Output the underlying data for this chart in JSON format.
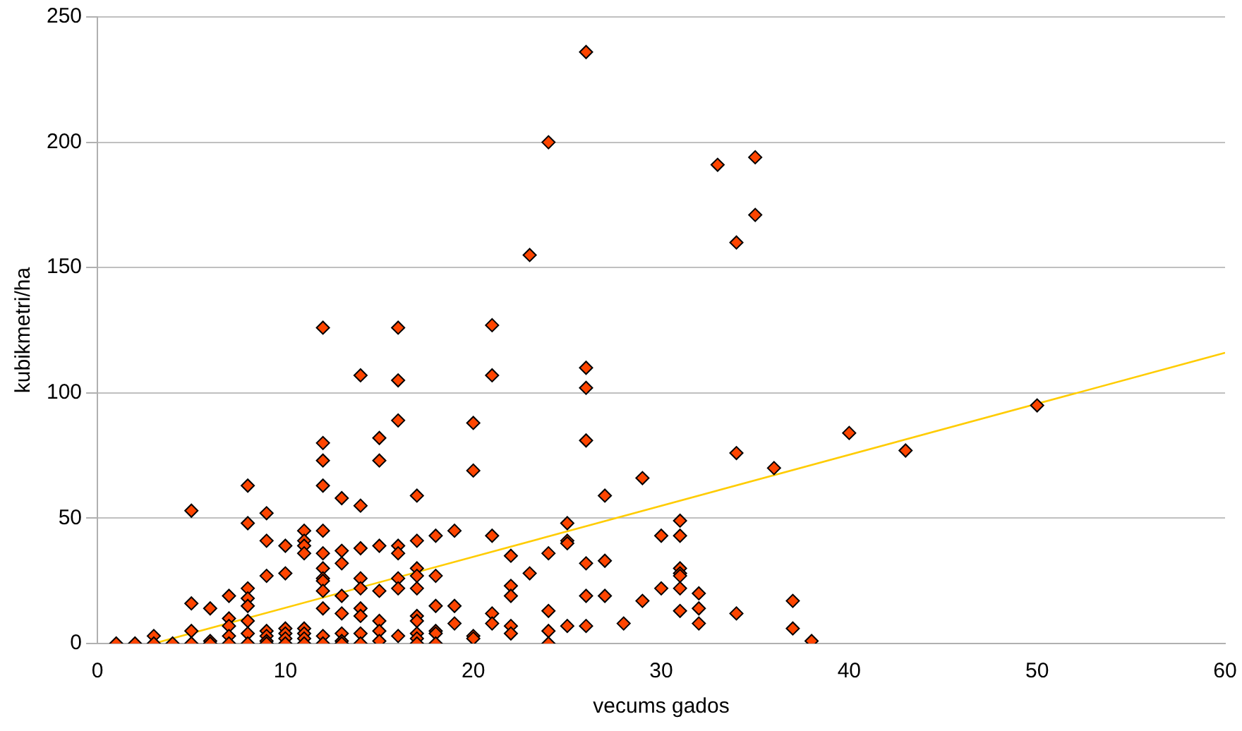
{
  "chart_data": {
    "type": "scatter",
    "xlabel": "vecums gados",
    "ylabel": "kubikmetri/ha",
    "xlim": [
      0,
      60
    ],
    "xticks": [
      0,
      10,
      20,
      30,
      40,
      50,
      60
    ],
    "ylim": [
      0,
      250
    ],
    "yticks": [
      0,
      50,
      100,
      150,
      200,
      250
    ],
    "grid": "y",
    "marker": "diamond",
    "series": [
      {
        "color": "#ff4500",
        "x": [
          1,
          2,
          3,
          3,
          4,
          5,
          5,
          5,
          5,
          6,
          6,
          6,
          7,
          7,
          7,
          7,
          7,
          8,
          8,
          8,
          8,
          8,
          8,
          8,
          8,
          9,
          9,
          9,
          9,
          9,
          9,
          9,
          10,
          10,
          10,
          10,
          10,
          10,
          11,
          11,
          11,
          11,
          11,
          11,
          11,
          11,
          12,
          12,
          12,
          12,
          12,
          12,
          12,
          12,
          12,
          12,
          12,
          12,
          12,
          13,
          13,
          13,
          13,
          13,
          13,
          13,
          13,
          14,
          14,
          14,
          14,
          14,
          14,
          14,
          14,
          14,
          15,
          15,
          15,
          15,
          15,
          15,
          15,
          16,
          16,
          16,
          16,
          16,
          16,
          16,
          16,
          17,
          17,
          17,
          17,
          17,
          17,
          17,
          17,
          17,
          17,
          18,
          18,
          18,
          18,
          18,
          18,
          19,
          19,
          19,
          20,
          20,
          20,
          20,
          21,
          21,
          21,
          21,
          21,
          22,
          22,
          22,
          22,
          22,
          23,
          23,
          24,
          24,
          24,
          24,
          24,
          25,
          25,
          25,
          25,
          26,
          26,
          26,
          26,
          26,
          26,
          26,
          27,
          27,
          27,
          28,
          29,
          29,
          30,
          30,
          31,
          31,
          31,
          31,
          31,
          31,
          31,
          32,
          32,
          32,
          33,
          34,
          34,
          34,
          35,
          35,
          36,
          37,
          37,
          38,
          40,
          43,
          50
        ],
        "values": [
          0,
          0,
          3,
          0,
          0,
          53,
          16,
          5,
          0,
          14,
          1,
          0,
          19,
          10,
          7,
          3,
          0,
          63,
          48,
          22,
          18,
          15,
          9,
          4,
          0,
          52,
          41,
          27,
          5,
          3,
          1,
          0,
          39,
          28,
          6,
          4,
          2,
          0,
          45,
          41,
          39,
          36,
          6,
          4,
          2,
          0,
          126,
          80,
          73,
          63,
          45,
          36,
          30,
          26,
          25,
          21,
          14,
          3,
          0,
          58,
          37,
          32,
          19,
          12,
          4,
          1,
          0,
          107,
          55,
          38,
          26,
          22,
          14,
          11,
          4,
          0,
          82,
          73,
          39,
          21,
          9,
          5,
          1,
          126,
          105,
          89,
          39,
          36,
          26,
          22,
          3,
          59,
          41,
          30,
          27,
          22,
          11,
          9,
          4,
          2,
          0,
          43,
          27,
          15,
          5,
          4,
          0,
          45,
          15,
          8,
          88,
          69,
          3,
          2,
          127,
          107,
          43,
          12,
          8,
          35,
          23,
          19,
          7,
          4,
          155,
          28,
          200,
          36,
          13,
          5,
          0,
          48,
          41,
          40,
          7,
          236,
          110,
          102,
          81,
          32,
          19,
          7,
          59,
          33,
          19,
          8,
          66,
          17,
          43,
          22,
          49,
          43,
          30,
          28,
          27,
          22,
          13,
          20,
          14,
          8,
          191,
          160,
          76,
          12,
          194,
          171,
          70,
          17,
          6,
          1,
          84,
          77,
          95
        ]
      },
      {
        "type": "line",
        "color": "#ffcc00",
        "marker": "none",
        "x": [
          3,
          60
        ],
        "values": [
          0,
          116
        ]
      }
    ]
  }
}
